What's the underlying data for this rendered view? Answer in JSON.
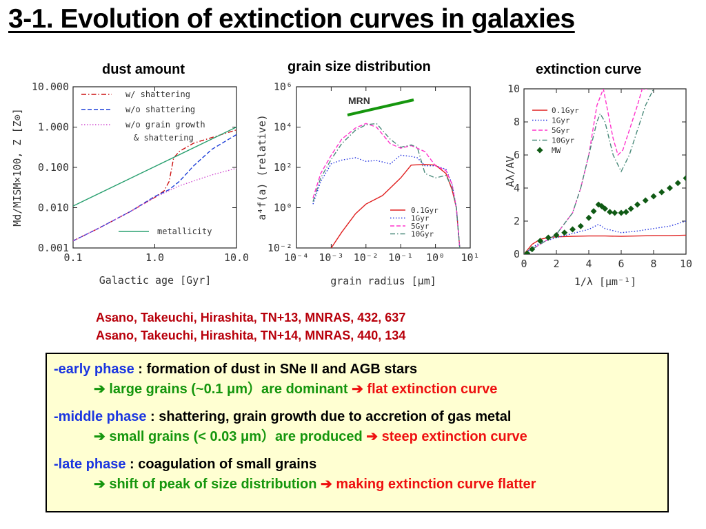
{
  "slide": {
    "title": "3-1. Evolution of extinction curves in galaxies",
    "references": [
      "Asano, Takeuchi, Hirashita, TN+13, MNRAS, 432, 637",
      "Asano, Takeuchi, Hirashita, TN+14, MNRAS, 440, 134"
    ],
    "phases": [
      {
        "name": "-early phase",
        "desc": " : formation of dust in SNe II and AGB stars",
        "arrow1": "➔",
        "result": " large grains (~0.1 μm）are dominant ",
        "arrow2": "➔",
        "effect": " flat extinction curve"
      },
      {
        "name": "-middle phase",
        "desc": " : shattering, grain growth due to accretion of gas metal",
        "arrow1": "➔",
        "result": " small grains (< 0.03 μm）are produced ",
        "arrow2": "➔",
        "effect": " steep extinction curve"
      },
      {
        "name": "-late phase",
        "desc": " : coagulation of small grains",
        "arrow1": "➔",
        "result": " shift of peak of size distribution ",
        "arrow2": "➔",
        "effect": " making extinction curve flatter"
      }
    ],
    "colors": {
      "title": "#000000",
      "refs": "#b8000b",
      "phase": "#1a35e0",
      "result": "#15960d",
      "effect": "#ee1010",
      "box_bg": "#ffffd2"
    }
  },
  "chart_data": [
    {
      "type": "line",
      "panel_label": "dust amount",
      "xlabel": "Galactic age [Gyr]",
      "ylabel": "Md/MISM×100, Z [Z⊙]",
      "x_scale": "log",
      "y_scale": "log",
      "xlim": [
        0.1,
        10.0
      ],
      "ylim": [
        0.001,
        10.0
      ],
      "xticks": [
        "0.1",
        "1.0",
        "10.0"
      ],
      "yticks": [
        "0.001",
        "0.010",
        "0.100",
        "1.000",
        "10.000"
      ],
      "legend_position": "top-left",
      "series": [
        {
          "name": "w/ shattering",
          "color": "#cc1111",
          "dash": "dashdot",
          "x": [
            0.1,
            0.2,
            0.5,
            1.0,
            1.3,
            1.5,
            1.7,
            2.0,
            3.0,
            5.0,
            10.0
          ],
          "y": [
            0.0015,
            0.003,
            0.008,
            0.018,
            0.026,
            0.045,
            0.17,
            0.25,
            0.4,
            0.55,
            0.85
          ]
        },
        {
          "name": "w/o shattering",
          "color": "#1c3ed8",
          "dash": "dashed",
          "x": [
            0.1,
            0.2,
            0.5,
            1.0,
            1.5,
            2.0,
            3.0,
            5.0,
            10.0
          ],
          "y": [
            0.0015,
            0.003,
            0.008,
            0.019,
            0.028,
            0.045,
            0.11,
            0.28,
            0.65
          ]
        },
        {
          "name": "w/o grain growth & shattering",
          "color": "#d14fd1",
          "dash": "dotted",
          "x": [
            0.1,
            0.2,
            0.5,
            1.0,
            2.0,
            5.0,
            10.0
          ],
          "y": [
            0.0015,
            0.003,
            0.008,
            0.018,
            0.035,
            0.065,
            0.095
          ]
        },
        {
          "name": "metallicity",
          "color": "#2aa070",
          "dash": "solid",
          "x": [
            0.1,
            10.0
          ],
          "y": [
            0.011,
            1.0
          ]
        }
      ]
    },
    {
      "type": "line",
      "panel_label": "grain size distribution",
      "xlabel": "grain radius [μm]",
      "ylabel": "a⁴f(a) (relative)",
      "x_scale": "log",
      "y_scale": "log",
      "xlim": [
        0.0001,
        10
      ],
      "ylim": [
        0.01,
        1000000
      ],
      "xticks": [
        "10⁻⁴",
        "10⁻³",
        "10⁻²",
        "10⁻¹",
        "10⁰",
        "10¹"
      ],
      "yticks": [
        "10⁻²",
        "10⁰",
        "10²",
        "10⁴",
        "10⁶"
      ],
      "legend_position": "bottom-right",
      "annotation": {
        "text": "MRN",
        "color": "#15960d"
      },
      "series": [
        {
          "name": "0.1Gyr",
          "color": "#e02020",
          "dash": "solid",
          "x": [
            0.001,
            0.002,
            0.005,
            0.01,
            0.03,
            0.1,
            0.2,
            0.5,
            1.0,
            2.0,
            3.0,
            4.0,
            5.0
          ],
          "y": [
            0.01,
            0.06,
            0.5,
            1.5,
            4,
            30,
            130,
            140,
            130,
            50,
            8,
            1,
            0.01
          ]
        },
        {
          "name": "1Gyr",
          "color": "#2030e0",
          "dash": "dotted",
          "x": [
            0.0003,
            0.0005,
            0.001,
            0.002,
            0.005,
            0.01,
            0.02,
            0.05,
            0.1,
            0.2,
            0.3,
            0.5,
            1.0,
            2.0,
            3.0,
            4.0,
            5.0
          ],
          "y": [
            1.5,
            20,
            150,
            230,
            300,
            200,
            220,
            150,
            400,
            350,
            300,
            120,
            120,
            80,
            15,
            1,
            0.01
          ]
        },
        {
          "name": "5Gyr",
          "color": "#ff33cc",
          "dash": "dashed",
          "x": [
            0.0003,
            0.0005,
            0.001,
            0.002,
            0.005,
            0.01,
            0.02,
            0.05,
            0.1,
            0.2,
            0.3,
            0.5,
            1.0,
            2.0,
            3.0,
            4.0,
            5.0
          ],
          "y": [
            3,
            50,
            400,
            2500,
            9000,
            15000,
            10000,
            1500,
            900,
            1200,
            900,
            600,
            120,
            70,
            15,
            1,
            0.01
          ]
        },
        {
          "name": "10Gyr",
          "color": "#4a8a7a",
          "dash": "dashdot",
          "x": [
            0.0003,
            0.0005,
            0.001,
            0.002,
            0.005,
            0.01,
            0.02,
            0.05,
            0.1,
            0.2,
            0.3,
            0.5,
            1.0,
            2.0,
            3.0,
            4.0,
            5.0
          ],
          "y": [
            2,
            30,
            250,
            1500,
            7000,
            13000,
            15000,
            2500,
            1000,
            1300,
            1000,
            50,
            30,
            40,
            10,
            1,
            0.01
          ]
        }
      ]
    },
    {
      "type": "line",
      "panel_label": "extinction curve",
      "xlabel": "1/λ [μm⁻¹]",
      "ylabel": "Aλ/AV",
      "x_scale": "linear",
      "y_scale": "linear",
      "xlim": [
        0,
        10
      ],
      "ylim": [
        0,
        10
      ],
      "xticks": [
        "0",
        "2",
        "4",
        "6",
        "8",
        "10"
      ],
      "yticks": [
        "0",
        "2",
        "4",
        "6",
        "8",
        "10"
      ],
      "legend_position": "top-left",
      "series": [
        {
          "name": "0.1Gyr",
          "color": "#e02020",
          "dash": "solid",
          "x": [
            0,
            0.5,
            1,
            1.5,
            2,
            3,
            4,
            5,
            6,
            7,
            8,
            9,
            10
          ],
          "y": [
            0,
            0.6,
            0.9,
            1.0,
            1.05,
            1.08,
            1.1,
            1.1,
            1.08,
            1.1,
            1.12,
            1.12,
            1.15
          ]
        },
        {
          "name": "1Gyr",
          "color": "#2030e0",
          "dash": "dotted",
          "x": [
            0,
            0.5,
            1,
            1.5,
            2,
            3,
            4,
            4.6,
            5,
            6,
            7,
            8,
            9,
            10
          ],
          "y": [
            0,
            0.4,
            0.7,
            0.85,
            1.0,
            1.25,
            1.5,
            1.8,
            1.55,
            1.3,
            1.4,
            1.55,
            1.7,
            2.0
          ]
        },
        {
          "name": "5Gyr",
          "color": "#ff33cc",
          "dash": "dashed",
          "x": [
            0,
            0.5,
            1,
            1.5,
            2,
            3,
            3.5,
            4,
            4.5,
            4.9,
            5.2,
            5.5,
            5.8,
            6.1,
            6.5,
            7,
            7.3,
            7.6
          ],
          "y": [
            0,
            0.3,
            0.6,
            0.9,
            1.2,
            2.5,
            4.0,
            6.0,
            9.0,
            10.0,
            8.5,
            7.0,
            6.0,
            6.3,
            7.5,
            9.0,
            10.0,
            10.0
          ]
        },
        {
          "name": "10Gyr",
          "color": "#4a8a7a",
          "dash": "dashdot",
          "x": [
            0,
            0.5,
            1,
            1.5,
            2,
            3,
            3.5,
            4,
            4.5,
            4.7,
            5.0,
            5.5,
            6.0,
            6.5,
            7,
            7.5,
            8.0
          ],
          "y": [
            0,
            0.3,
            0.6,
            0.9,
            1.2,
            2.5,
            4.0,
            6.0,
            8.0,
            8.5,
            8.0,
            6.0,
            5.0,
            6.0,
            7.5,
            9.0,
            10.0
          ]
        },
        {
          "name": "MW",
          "color": "#0f5a14",
          "marker": "diamond",
          "x": [
            0.2,
            0.5,
            1,
            1.5,
            2,
            2.5,
            3,
            3.5,
            4,
            4.3,
            4.6,
            4.8,
            5,
            5.3,
            5.6,
            6,
            6.3,
            6.6,
            7,
            7.5,
            8,
            8.5,
            9,
            9.5,
            10
          ],
          "y": [
            0.05,
            0.3,
            0.8,
            1.0,
            1.15,
            1.3,
            1.5,
            1.7,
            2.2,
            2.6,
            3.0,
            2.9,
            2.75,
            2.55,
            2.5,
            2.5,
            2.55,
            2.75,
            3.0,
            3.25,
            3.5,
            3.75,
            4.0,
            4.3,
            4.6
          ]
        }
      ]
    }
  ]
}
